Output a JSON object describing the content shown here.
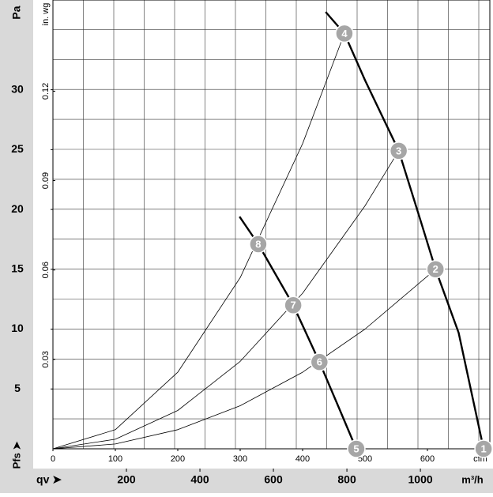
{
  "chart_data": {
    "type": "line",
    "y_label": "Pa",
    "y2_label": "in. wg",
    "x_label": "cfm",
    "x2_label": "m³/h",
    "y_axis_name": "Pfs ➤",
    "x_axis_name": "qv ➤",
    "xlim": [
      0,
      700
    ],
    "xticks": [
      0,
      100,
      200,
      300,
      400,
      500,
      600
    ],
    "x2lim": [
      0,
      1189
    ],
    "x2ticks": [
      200,
      400,
      600,
      800,
      1000
    ],
    "ylim": [
      0,
      37.5
    ],
    "yticks": [
      5,
      10,
      15,
      20,
      25,
      30
    ],
    "y2lim": [
      0,
      0.1506
    ],
    "y2ticks": [
      0.03,
      0.06,
      0.09,
      0.12
    ],
    "grid": true,
    "series": [
      {
        "color": "#000000",
        "line_width": 2.4,
        "x": [
          437,
          467,
          500,
          554,
          590,
          613,
          650,
          690
        ],
        "values": [
          36.5,
          34.7,
          30.8,
          24.9,
          18.9,
          15.0,
          9.7,
          0
        ]
      },
      {
        "color": "#000000",
        "line_width": 2.4,
        "x": [
          299,
          329,
          385,
          427,
          460,
          486
        ],
        "values": [
          19.4,
          17.1,
          12.0,
          7.25,
          3.2,
          0
        ]
      },
      {
        "color": "#000000",
        "line_width": 0.8,
        "x": [
          0,
          100,
          200,
          300,
          400,
          467
        ],
        "values": [
          0,
          1.6,
          6.4,
          14.3,
          25.5,
          34.7
        ]
      },
      {
        "color": "#000000",
        "line_width": 0.8,
        "x": [
          0,
          100,
          200,
          300,
          400,
          500,
          554
        ],
        "values": [
          0,
          0.8,
          3.2,
          7.3,
          13.0,
          20.3,
          24.9
        ]
      },
      {
        "color": "#000000",
        "line_width": 0.8,
        "x": [
          0,
          100,
          200,
          300,
          400,
          500,
          613
        ],
        "values": [
          0,
          0.4,
          1.6,
          3.6,
          6.4,
          10.0,
          15.0
        ]
      }
    ],
    "markers": [
      {
        "label": "1",
        "x": 690,
        "y": 0
      },
      {
        "label": "2",
        "x": 613,
        "y": 15.0
      },
      {
        "label": "3",
        "x": 554,
        "y": 24.9
      },
      {
        "label": "4",
        "x": 467,
        "y": 34.7
      },
      {
        "label": "5",
        "x": 486,
        "y": 0
      },
      {
        "label": "6",
        "x": 427,
        "y": 7.25
      },
      {
        "label": "7",
        "x": 385,
        "y": 12.0
      },
      {
        "label": "8",
        "x": 329,
        "y": 17.1
      }
    ]
  }
}
